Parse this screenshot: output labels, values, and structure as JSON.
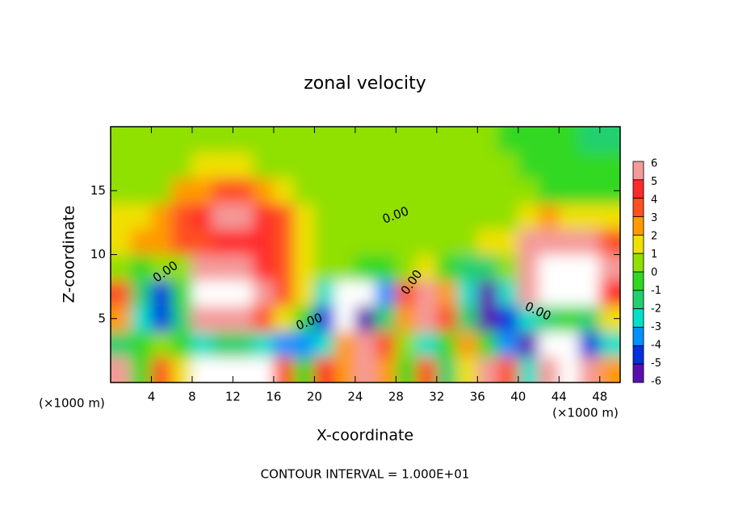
{
  "chart_data": {
    "type": "heatmap",
    "title": "zonal velocity",
    "x_label": "X-coordinate",
    "y_label": "Z-coordinate",
    "x_unit_labels": [
      "(×1000 m)",
      "(×1000 m)"
    ],
    "footnote": "CONTOUR INTERVAL = 1.000E+01",
    "contour_labels": [
      "0.00",
      "0.00",
      "0.00",
      "0.00",
      "0.00"
    ],
    "xlim": [
      0,
      50
    ],
    "ylim": [
      0,
      20
    ],
    "xticks": [
      4,
      8,
      12,
      16,
      20,
      24,
      28,
      32,
      36,
      40,
      44,
      48
    ],
    "yticks": [
      5,
      10,
      15
    ],
    "x": [
      1,
      3,
      5,
      7,
      9,
      11,
      13,
      15,
      17,
      19,
      21,
      23,
      25,
      27,
      29,
      31,
      33,
      35,
      37,
      39,
      41,
      43,
      45,
      47,
      49
    ],
    "z": [
      1,
      3,
      5,
      7,
      9,
      11,
      13,
      15,
      17,
      19
    ],
    "values": [
      [
        5,
        -1,
        3,
        1,
        7,
        8,
        8,
        7,
        3,
        -1,
        4,
        2,
        5,
        2,
        -1,
        3,
        -2,
        1,
        5,
        3,
        -3,
        6,
        7,
        5,
        2
      ],
      [
        -2,
        -1,
        0,
        -1,
        -3,
        -2,
        -2,
        -3,
        -4,
        -4,
        -3,
        2,
        6,
        3,
        0,
        -3,
        -1,
        2,
        -1,
        -4,
        -6,
        -8,
        -8,
        -5,
        -3
      ],
      [
        2,
        -3,
        -5,
        -2,
        5,
        6,
        5,
        3,
        1,
        -1,
        -5,
        -8,
        -6,
        -2,
        2,
        6,
        3,
        -2,
        -6,
        -5,
        -3,
        -2,
        -1,
        -2,
        1
      ],
      [
        3,
        -2,
        -5,
        -1,
        7,
        8,
        8,
        6,
        3,
        1,
        -3,
        -8,
        -8,
        -4,
        3,
        6,
        2,
        -3,
        -6,
        -3,
        5,
        8,
        8,
        8,
        4
      ],
      [
        0,
        -1,
        0,
        0,
        5,
        6,
        5,
        4,
        3,
        1,
        0,
        0,
        -1,
        -1,
        0,
        1,
        -1,
        -2,
        -2,
        0,
        6,
        8,
        8,
        7,
        5
      ],
      [
        1.5,
        2,
        2.5,
        3,
        3.5,
        4,
        4.5,
        4,
        3,
        1,
        0,
        0,
        0,
        0,
        0,
        0,
        0,
        0.5,
        1,
        1,
        5,
        6,
        6,
        5,
        3
      ],
      [
        1,
        1.5,
        2,
        3,
        4,
        5,
        5,
        4,
        3,
        1,
        0,
        0,
        0,
        0,
        0,
        0,
        0,
        0,
        0,
        0,
        1,
        2,
        1.5,
        1,
        1
      ],
      [
        0.5,
        0.5,
        0.5,
        2,
        2.5,
        3,
        3,
        2.5,
        1,
        0.5,
        0,
        0,
        0,
        0,
        0,
        0,
        0,
        0,
        0,
        0,
        0,
        -0.5,
        -1,
        -1,
        -1
      ],
      [
        0.5,
        0.5,
        0.5,
        0.5,
        1,
        1,
        1,
        0.5,
        0.5,
        0.5,
        0.5,
        0,
        0,
        0,
        0,
        0,
        0,
        0,
        0,
        0,
        -0.5,
        -0.5,
        -1,
        -1,
        -1
      ],
      [
        0.5,
        0.5,
        0.5,
        0.5,
        0.5,
        0.5,
        0.5,
        0.5,
        0.5,
        0.5,
        0.5,
        0.5,
        0,
        0,
        0,
        0,
        0,
        0,
        0,
        -0.5,
        -0.5,
        -1,
        -1,
        -1.5,
        -1.5
      ]
    ],
    "colorbar": {
      "ticks": [
        6,
        5,
        4,
        3,
        2,
        1,
        0,
        -1,
        -2,
        -3,
        -4,
        -5,
        -6
      ],
      "colors": [
        "#f49a9a",
        "#ff2a2a",
        "#ff5020",
        "#ff9a00",
        "#f0e000",
        "#90e000",
        "#30d820",
        "#20d070",
        "#00e0c8",
        "#0090ff",
        "#0030e0",
        "#5a10b0"
      ],
      "out_of_range_color": "#ffffff"
    }
  }
}
